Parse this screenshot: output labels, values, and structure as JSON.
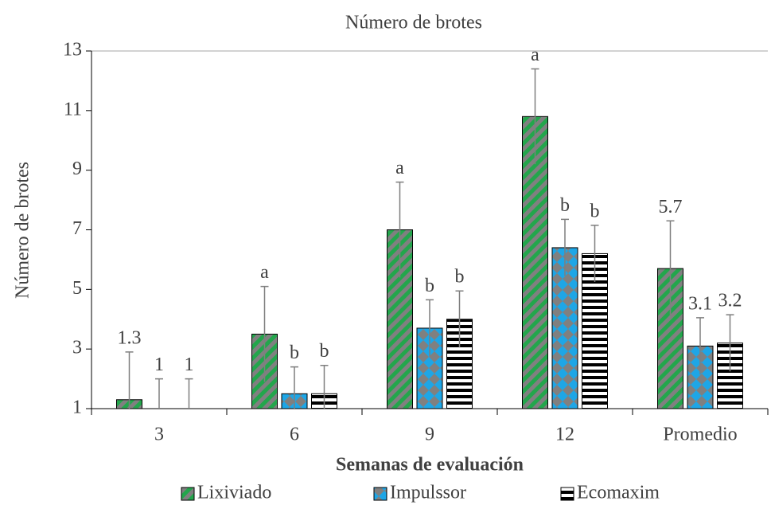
{
  "chart_data": {
    "type": "bar",
    "title": "Número de brotes",
    "y_label": "Número de brotes",
    "x_label": "Semanas de evaluación",
    "categories": [
      "3",
      "6",
      "9",
      "12",
      "Promedio"
    ],
    "series": [
      {
        "name": "Lixiviado",
        "color": "#23a64c",
        "pattern": "diagonal",
        "values": [
          1.3,
          3.5,
          7.0,
          10.8,
          5.7
        ],
        "errors": [
          1.6,
          1.6,
          1.6,
          1.6,
          1.6
        ],
        "labels": [
          "1.3",
          "a",
          "a",
          "a",
          "5.7"
        ]
      },
      {
        "name": "Impulssor",
        "color": "#1ea6e6",
        "pattern": "diamond",
        "values": [
          1,
          1.5,
          3.7,
          6.4,
          3.1
        ],
        "errors": [
          1.0,
          0.9,
          0.95,
          0.95,
          0.95
        ],
        "labels": [
          "1",
          "b",
          "b",
          "b",
          "3.1"
        ]
      },
      {
        "name": "Ecomaxim",
        "color": "#000000",
        "pattern": "horizontal",
        "values": [
          1,
          1.5,
          4.0,
          6.2,
          3.2
        ],
        "errors": [
          1.0,
          0.95,
          0.95,
          0.95,
          0.95
        ],
        "labels": [
          "1",
          "b",
          "b",
          "b",
          "3.2"
        ]
      }
    ],
    "ylim": [
      1,
      13
    ],
    "yticks": [
      1,
      3,
      5,
      7,
      9,
      11,
      13
    ],
    "grid": false,
    "legend": "bottom"
  }
}
